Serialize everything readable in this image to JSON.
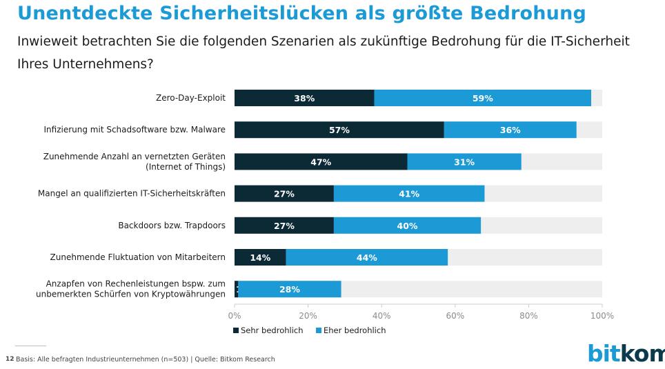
{
  "header": {
    "title": "Unentdeckte Sicherheitslücken als größte Bedrohung",
    "subtitle": "Inwieweit betrachten Sie die folgenden Szenarien als zukünftige Bedrohung für die IT-Sicherheit Ihres Unternehmens?"
  },
  "chart_data": {
    "type": "bar",
    "orientation": "horizontal",
    "stacked": true,
    "categories": [
      [
        "Zero-Day-Exploit"
      ],
      [
        "Infizierung mit Schadsoftware bzw. Malware"
      ],
      [
        "Zunehmende Anzahl an vernetzten Geräten",
        "(Internet of Things)"
      ],
      [
        "Mangel an qualifizierten IT-Sicherheitskräften"
      ],
      [
        "Backdoors bzw. Trapdoors"
      ],
      [
        "Zunehmende Fluktuation von Mitarbeitern"
      ],
      [
        "Anzapfen von Rechenleistungen bspw. zum",
        "unbemerkten Schürfen von Kryptowährungen"
      ]
    ],
    "series": [
      {
        "name": "Sehr bedrohlich",
        "color": "#0b2a36",
        "values": [
          38,
          57,
          47,
          27,
          27,
          14,
          1
        ]
      },
      {
        "name": "Eher bedrohlich",
        "color": "#1b9ad6",
        "values": [
          59,
          36,
          31,
          41,
          40,
          44,
          28
        ]
      }
    ],
    "remainder_color": "#eeeeee",
    "xlim": [
      0,
      100
    ],
    "xticks": [
      "0%",
      "20%",
      "40%",
      "60%",
      "80%",
      "100%"
    ],
    "legend": "bottom",
    "grid": false
  },
  "footer": {
    "page_number": "12",
    "source": "Basis: Alle befragten Industrieunternehmen (n=503) | Quelle: Bitkom Research"
  },
  "logo": {
    "part1": "bit",
    "part2": "kom"
  }
}
